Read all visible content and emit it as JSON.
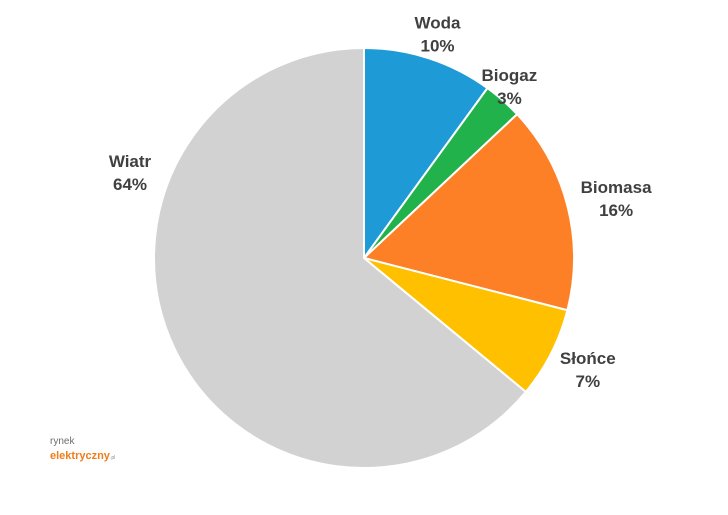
{
  "chart_data": {
    "type": "pie",
    "start": "top",
    "direction": "clockwise",
    "slices": [
      {
        "label": "Woda",
        "value": 10,
        "value_text": "10%",
        "color": "#1e9ad6"
      },
      {
        "label": "Biogaz",
        "value": 3,
        "value_text": "3%",
        "color": "#22b24c"
      },
      {
        "label": "Biomasa",
        "value": 16,
        "value_text": "16%",
        "color": "#fe8026"
      },
      {
        "label": "Słońce",
        "value": 7,
        "value_text": "7%",
        "color": "#ffc000"
      },
      {
        "label": "Wiatr",
        "value": 64,
        "value_text": "64%",
        "color": "#d3d2d2"
      }
    ]
  },
  "logo": {
    "line1": "rynek",
    "line2": "elektryczny",
    "line3": ".pl"
  }
}
